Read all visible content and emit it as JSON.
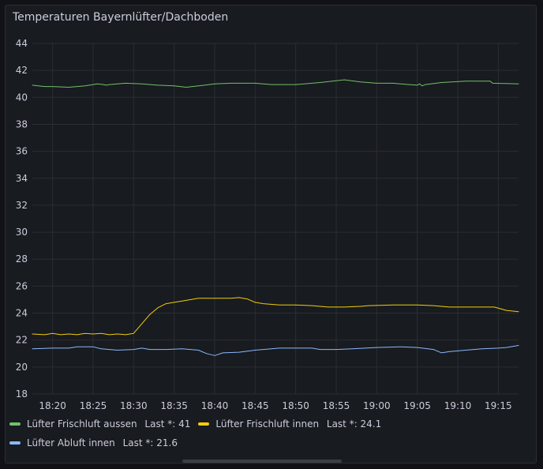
{
  "panel": {
    "title": "Temperaturen Bayernlüfter/Dachboden"
  },
  "chart_data": {
    "type": "line",
    "title": "Temperaturen Bayernlüfter/Dachboden",
    "xlabel": "",
    "ylabel": "",
    "ylim": [
      18,
      44
    ],
    "yticks": [
      18,
      20,
      22,
      24,
      26,
      28,
      30,
      32,
      34,
      36,
      38,
      40,
      42,
      44
    ],
    "x_unit": "time (HH:MM)",
    "xlim": [
      "18:17.5",
      "19:17.5"
    ],
    "xticks": [
      "18:20",
      "18:25",
      "18:30",
      "18:35",
      "18:40",
      "18:45",
      "18:50",
      "18:55",
      "19:00",
      "19:05",
      "19:10",
      "19:15"
    ],
    "grid": true,
    "legend_position": "bottom",
    "series": [
      {
        "name": "Lüfter Frischluft aussen",
        "color": "#73bf69",
        "last": "41",
        "points": [
          [
            "18:17.5",
            40.9
          ],
          [
            "18:19",
            40.8
          ],
          [
            "18:20",
            40.8
          ],
          [
            "18:22",
            40.75
          ],
          [
            "18:24",
            40.85
          ],
          [
            "18:25",
            40.95
          ],
          [
            "18:25.5",
            41.0
          ],
          [
            "18:26.3",
            40.95
          ],
          [
            "18:26.6",
            40.9
          ],
          [
            "18:27",
            40.95
          ],
          [
            "18:29",
            41.05
          ],
          [
            "18:31",
            41.0
          ],
          [
            "18:33",
            40.9
          ],
          [
            "18:35",
            40.85
          ],
          [
            "18:36.5",
            40.75
          ],
          [
            "18:38",
            40.85
          ],
          [
            "18:40",
            41.0
          ],
          [
            "18:42",
            41.05
          ],
          [
            "18:45",
            41.05
          ],
          [
            "18:47",
            40.95
          ],
          [
            "18:50",
            40.95
          ],
          [
            "18:53",
            41.1
          ],
          [
            "18:56",
            41.3
          ],
          [
            "18:58",
            41.15
          ],
          [
            "19:00",
            41.05
          ],
          [
            "19:02",
            41.05
          ],
          [
            "19:04",
            40.95
          ],
          [
            "19:05",
            40.9
          ],
          [
            "19:05.3",
            41.0
          ],
          [
            "19:05.6",
            40.85
          ],
          [
            "19:06",
            40.95
          ],
          [
            "19:08",
            41.1
          ],
          [
            "19:11",
            41.2
          ],
          [
            "19:14",
            41.2
          ],
          [
            "19:14.3",
            41.05
          ],
          [
            "19:17.5",
            41.0
          ]
        ]
      },
      {
        "name": "Lüfter Frischluft innen",
        "color": "#f2cc0c",
        "last": "24.1",
        "points": [
          [
            "18:17.5",
            22.45
          ],
          [
            "18:19",
            22.4
          ],
          [
            "18:20",
            22.5
          ],
          [
            "18:21",
            22.4
          ],
          [
            "18:22",
            22.45
          ],
          [
            "18:23",
            22.4
          ],
          [
            "18:24",
            22.5
          ],
          [
            "18:25",
            22.45
          ],
          [
            "18:26",
            22.5
          ],
          [
            "18:27",
            22.4
          ],
          [
            "18:28",
            22.45
          ],
          [
            "18:29",
            22.4
          ],
          [
            "18:30",
            22.5
          ],
          [
            "18:31",
            23.2
          ],
          [
            "18:32",
            23.9
          ],
          [
            "18:33",
            24.4
          ],
          [
            "18:34",
            24.7
          ],
          [
            "18:35",
            24.8
          ],
          [
            "18:36",
            24.9
          ],
          [
            "18:37",
            25.0
          ],
          [
            "18:38",
            25.1
          ],
          [
            "18:39",
            25.1
          ],
          [
            "18:40",
            25.1
          ],
          [
            "18:41",
            25.1
          ],
          [
            "18:42",
            25.1
          ],
          [
            "18:43",
            25.15
          ],
          [
            "18:44",
            25.05
          ],
          [
            "18:45",
            24.8
          ],
          [
            "18:46",
            24.7
          ],
          [
            "18:48",
            24.6
          ],
          [
            "18:50",
            24.6
          ],
          [
            "18:52",
            24.55
          ],
          [
            "18:54",
            24.45
          ],
          [
            "18:56",
            24.45
          ],
          [
            "18:58",
            24.5
          ],
          [
            "18:59",
            24.55
          ],
          [
            "19:02",
            24.6
          ],
          [
            "19:05",
            24.6
          ],
          [
            "19:07",
            24.55
          ],
          [
            "19:09",
            24.45
          ],
          [
            "19:12",
            24.45
          ],
          [
            "19:14.5",
            24.45
          ],
          [
            "19:16",
            24.2
          ],
          [
            "19:17.5",
            24.1
          ]
        ]
      },
      {
        "name": "Lüfter Abluft innen",
        "color": "#8ab8ff",
        "last": "21.6",
        "points": [
          [
            "18:17.5",
            21.35
          ],
          [
            "18:20",
            21.4
          ],
          [
            "18:22",
            21.4
          ],
          [
            "18:23",
            21.5
          ],
          [
            "18:25",
            21.5
          ],
          [
            "18:26",
            21.35
          ],
          [
            "18:28",
            21.25
          ],
          [
            "18:30",
            21.3
          ],
          [
            "18:31",
            21.4
          ],
          [
            "18:32",
            21.3
          ],
          [
            "18:34",
            21.3
          ],
          [
            "18:36",
            21.35
          ],
          [
            "18:37",
            21.3
          ],
          [
            "18:38",
            21.25
          ],
          [
            "18:39",
            21.0
          ],
          [
            "18:40",
            20.85
          ],
          [
            "18:41",
            21.05
          ],
          [
            "18:43",
            21.1
          ],
          [
            "18:45",
            21.25
          ],
          [
            "18:47",
            21.35
          ],
          [
            "18:48",
            21.4
          ],
          [
            "18:50",
            21.4
          ],
          [
            "18:52",
            21.4
          ],
          [
            "18:53",
            21.3
          ],
          [
            "18:55",
            21.3
          ],
          [
            "18:57",
            21.35
          ],
          [
            "19:00",
            21.45
          ],
          [
            "19:03",
            21.5
          ],
          [
            "19:05",
            21.45
          ],
          [
            "19:07",
            21.3
          ],
          [
            "19:08",
            21.05
          ],
          [
            "19:09",
            21.15
          ],
          [
            "19:11",
            21.25
          ],
          [
            "19:13",
            21.35
          ],
          [
            "19:15",
            21.4
          ],
          [
            "19:16",
            21.45
          ],
          [
            "19:17.5",
            21.6
          ]
        ]
      }
    ]
  }
}
